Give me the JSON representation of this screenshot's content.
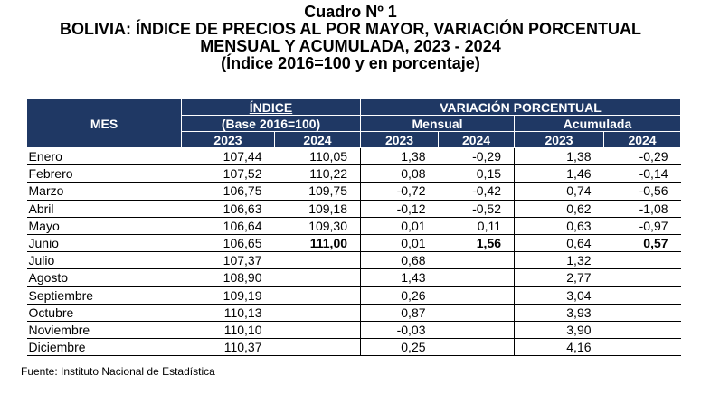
{
  "header": {
    "line1": "Cuadro Nº 1",
    "line2": "BOLIVIA: ÍNDICE DE PRECIOS AL POR MAYOR, VARIACIÓN PORCENTUAL",
    "line3": "MENSUAL Y ACUMULADA, 2023 - 2024",
    "line4": "(Índice 2016=100 y en porcentaje)"
  },
  "table": {
    "col_mes": "MES",
    "col_indice": "ÍNDICE",
    "col_base": "(Base 2016=100)",
    "col_variacion": "VARIACIÓN PORCENTUAL",
    "col_mensual": "Mensual",
    "col_acumulada": "Acumulada",
    "years": [
      "2023",
      "2024",
      "2023",
      "2024",
      "2023",
      "2024"
    ],
    "rows": [
      {
        "mes": "Enero",
        "i23": "107,44",
        "i24": "110,05",
        "m23": "1,38",
        "m24": "-0,29",
        "a23": "1,38",
        "a24": "-0,29"
      },
      {
        "mes": "Febrero",
        "i23": "107,52",
        "i24": "110,22",
        "m23": "0,08",
        "m24": "0,15",
        "a23": "1,46",
        "a24": "-0,14"
      },
      {
        "mes": "Marzo",
        "i23": "106,75",
        "i24": "109,75",
        "m23": "-0,72",
        "m24": "-0,42",
        "a23": "0,74",
        "a24": "-0,56"
      },
      {
        "mes": "Abril",
        "i23": "106,63",
        "i24": "109,18",
        "m23": "-0,12",
        "m24": "-0,52",
        "a23": "0,62",
        "a24": "-1,08"
      },
      {
        "mes": "Mayo",
        "i23": "106,64",
        "i24": "109,30",
        "m23": "0,01",
        "m24": "0,11",
        "a23": "0,63",
        "a24": "-0,97"
      },
      {
        "mes": "Junio",
        "i23": "106,65",
        "i24": "111,00",
        "m23": "0,01",
        "m24": "1,56",
        "a23": "0,64",
        "a24": "0,57"
      },
      {
        "mes": "Julio",
        "i23": "107,37",
        "i24": "",
        "m23": "0,68",
        "m24": "",
        "a23": "1,32",
        "a24": ""
      },
      {
        "mes": "Agosto",
        "i23": "108,90",
        "i24": "",
        "m23": "1,43",
        "m24": "",
        "a23": "2,77",
        "a24": ""
      },
      {
        "mes": "Septiembre",
        "i23": "109,19",
        "i24": "",
        "m23": "0,26",
        "m24": "",
        "a23": "3,04",
        "a24": ""
      },
      {
        "mes": "Octubre",
        "i23": "110,13",
        "i24": "",
        "m23": "0,87",
        "m24": "",
        "a23": "3,93",
        "a24": ""
      },
      {
        "mes": "Noviembre",
        "i23": "110,10",
        "i24": "",
        "m23": "-0,03",
        "m24": "",
        "a23": "3,90",
        "a24": ""
      },
      {
        "mes": "Diciembre",
        "i23": "110,37",
        "i24": "",
        "m23": "0,25",
        "m24": "",
        "a23": "4,16",
        "a24": ""
      }
    ]
  },
  "footer": {
    "source": "Fuente: Instituto Nacional de Estadística"
  }
}
